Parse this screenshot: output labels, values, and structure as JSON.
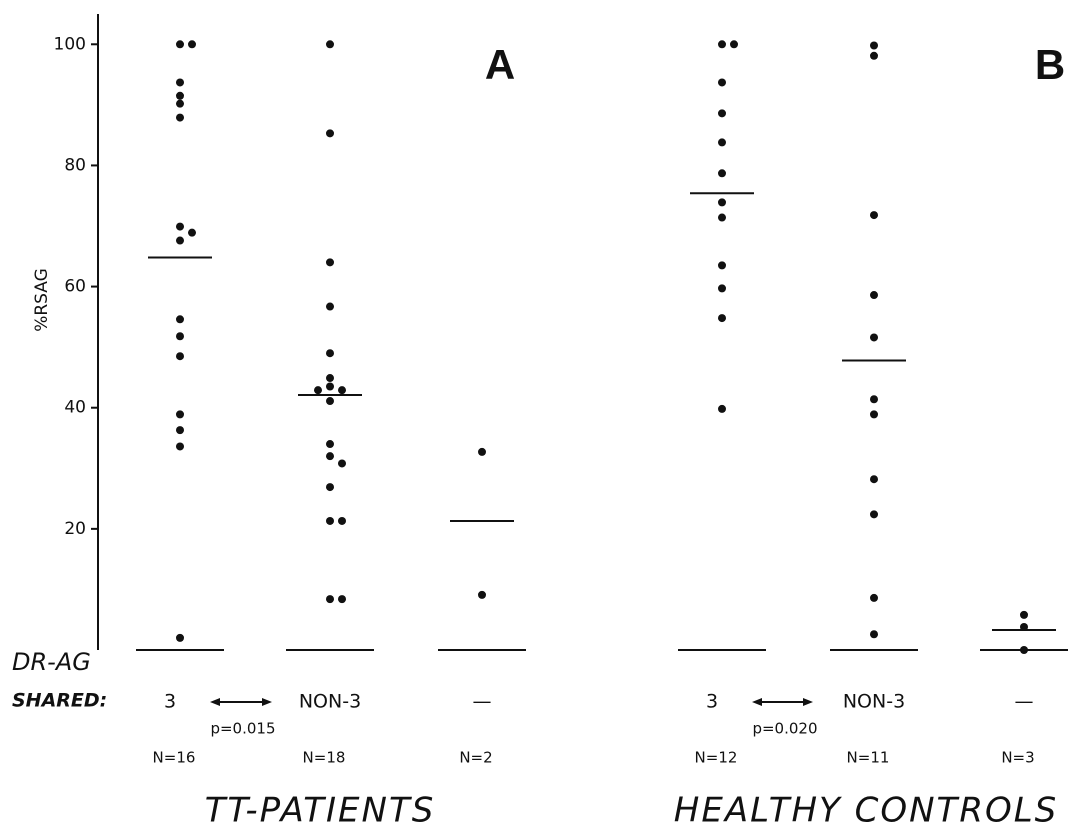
{
  "chart_data": {
    "type": "dotplot",
    "ylabel": "%RSAG",
    "ylim": [
      0,
      105
    ],
    "yticks": [
      20,
      40,
      60,
      80,
      100
    ],
    "grouping_label": "DR-AG",
    "shared_label": "SHARED:",
    "color": "#111111",
    "panels": [
      {
        "letter": "A",
        "title": "TT-PATIENTS",
        "comparison": "p=0.015",
        "groups": [
          {
            "category": "3",
            "n_label": "N=16",
            "mean": 64.8,
            "values": [
              100,
              100,
              93.7,
              91.5,
              90.2,
              87.9,
              69.9,
              68.9,
              67.6,
              54.6,
              51.8,
              48.5,
              38.9,
              36.3,
              33.6,
              2
            ]
          },
          {
            "category": "NON-3",
            "n_label": "N=18",
            "mean": 42.1,
            "values": [
              100,
              85.3,
              64,
              56.7,
              49,
              44.9,
              43.5,
              42.9,
              42.9,
              41.1,
              34,
              32,
              30.8,
              26.9,
              21.3,
              21.3,
              8.4,
              8.4
            ]
          },
          {
            "category": "—",
            "n_label": "N=2",
            "mean": 21.3,
            "values": [
              32.7,
              9.1
            ]
          }
        ]
      },
      {
        "letter": "B",
        "title": "HEALTHY CONTROLS",
        "comparison": "p=0.020",
        "groups": [
          {
            "category": "3",
            "n_label": "N=12",
            "mean": 75.4,
            "values": [
              100,
              100,
              93.7,
              88.6,
              83.8,
              78.7,
              73.9,
              71.4,
              63.5,
              59.7,
              54.8,
              39.8
            ]
          },
          {
            "category": "NON-3",
            "n_label": "N=11",
            "mean": 47.8,
            "values": [
              99.8,
              98.1,
              71.8,
              58.6,
              51.6,
              41.4,
              38.9,
              28.2,
              22.4,
              8.6,
              2.6
            ]
          },
          {
            "category": "—",
            "n_label": "N=3",
            "mean": 3.3,
            "values": [
              5.8,
              3.8,
              0
            ]
          }
        ]
      }
    ]
  }
}
